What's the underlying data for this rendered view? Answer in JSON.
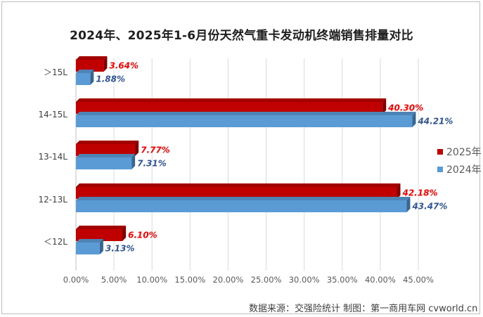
{
  "chart_data": {
    "type": "bar",
    "orientation": "horizontal",
    "title": "2024年、2025年1-6月份天然气重卡发动机终端销售排量对比",
    "categories": [
      "＞15L",
      "14-15L",
      "13-14L",
      "12-13L",
      "＜12L"
    ],
    "series": [
      {
        "name": "2025年",
        "color": "#c00000",
        "values": [
          3.64,
          40.3,
          7.77,
          42.18,
          6.1
        ],
        "labels": [
          "3.64%",
          "40.30%",
          "7.77%",
          "42.18%",
          "6.10%"
        ],
        "label_color": "#ff0000"
      },
      {
        "name": "2024年",
        "color": "#5b9bd5",
        "values": [
          1.88,
          44.21,
          7.31,
          43.47,
          3.13
        ],
        "labels": [
          "1.88%",
          "44.21%",
          "7.31%",
          "43.47%",
          "3.13%"
        ],
        "label_color": "#2f5597"
      }
    ],
    "xlim": [
      0,
      45
    ],
    "xticks": [
      0,
      5,
      10,
      15,
      20,
      25,
      30,
      35,
      40,
      45
    ],
    "xtick_labels": [
      "0.00%",
      "5.00%",
      "10.00%",
      "15.00%",
      "20.00%",
      "25.00%",
      "30.00%",
      "35.00%",
      "40.00%",
      "45.00%"
    ],
    "grid": true,
    "legend_position": "right"
  },
  "footer": {
    "source": "数据来源：交强险统计    制图：第一商用车网 cvworld.cn"
  }
}
